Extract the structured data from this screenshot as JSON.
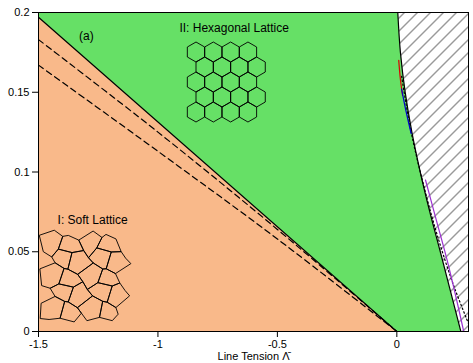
{
  "chart_data": {
    "type": "line",
    "x_label": "Line Tension Λ̄",
    "xlim": [
      -1.5,
      0.3
    ],
    "ylim": [
      0,
      0.2
    ],
    "xticks": [
      -1.5,
      -1,
      -0.5,
      0
    ],
    "yticks": [
      0,
      0.05,
      0.1,
      0.15,
      0.2
    ],
    "annotations": [
      {
        "text": "(a)",
        "x": -1.33,
        "y": 0.185
      },
      {
        "text": "II: Hexagonal Lattice",
        "x": -0.91,
        "y": 0.19
      },
      {
        "text": "I: Soft Lattice",
        "x": -1.42,
        "y": 0.07
      }
    ],
    "series": [
      {
        "type": "area",
        "color": "#f9b98a",
        "x": [
          -1.5,
          0,
          -1.5
        ],
        "y": [
          0.197,
          0,
          0
        ]
      },
      {
        "type": "area",
        "color": "#66e066",
        "x": [
          -1.5,
          -1.5,
          0.004,
          0.015,
          0.035,
          0.063,
          0.098,
          0.138,
          0.182,
          0.225,
          0.268,
          0
        ],
        "y": [
          0.197,
          0.2,
          0.2,
          0.175,
          0.15,
          0.125,
          0.1,
          0.075,
          0.05,
          0.025,
          0,
          0
        ]
      },
      {
        "type": "hatched",
        "color": "#ffffff",
        "x": [
          0.004,
          0.3,
          0.3,
          0.268,
          0.225,
          0.182,
          0.138,
          0.098,
          0.063,
          0.035,
          0.015
        ],
        "y": [
          0.2,
          0.2,
          0,
          0,
          0.025,
          0.05,
          0.075,
          0.1,
          0.125,
          0.15,
          0.175
        ]
      },
      {
        "type": "line",
        "color": "#000000",
        "line_style": "solid",
        "x": [
          -1.5,
          0
        ],
        "y": [
          0.197,
          0
        ]
      },
      {
        "type": "line",
        "color": "#000000",
        "line_style": "dashed",
        "x": [
          -1.5,
          -1,
          -0.5,
          0
        ],
        "y": [
          0.183,
          0.125,
          0.064,
          0
        ]
      },
      {
        "type": "line",
        "color": "#000000",
        "line_style": "dashed",
        "x": [
          -1.5,
          -1,
          -0.5,
          0
        ],
        "y": [
          0.167,
          0.113,
          0.058,
          0
        ]
      },
      {
        "type": "line",
        "color": "#000000",
        "line_style": "solid",
        "x": [
          0.004,
          0.015,
          0.035,
          0.063,
          0.098,
          0.138,
          0.182,
          0.225,
          0.268
        ],
        "y": [
          0.2,
          0.175,
          0.15,
          0.125,
          0.1,
          0.075,
          0.05,
          0.025,
          0
        ]
      },
      {
        "type": "line",
        "color": "#000000",
        "line_style": "dotted",
        "x": [
          0.02,
          0.06,
          0.115,
          0.17,
          0.235,
          0.3
        ],
        "y": [
          0.16,
          0.125,
          0.09,
          0.06,
          0.03,
          0.005
        ]
      },
      {
        "type": "line",
        "color": "#9b30d0",
        "line_style": "solid",
        "x": [
          0.12,
          0.165,
          0.21,
          0.25,
          0.28
        ],
        "y": [
          0.095,
          0.07,
          0.045,
          0.02,
          0
        ]
      },
      {
        "type": "line",
        "color": "#dd0000",
        "line_style": "solid",
        "x": [
          0.008,
          0.015,
          0.024
        ],
        "y": [
          0.17,
          0.158,
          0.148
        ]
      },
      {
        "type": "line",
        "color": "#0000cc",
        "line_style": "solid",
        "x": [
          0.02,
          0.04,
          0.06
        ],
        "y": [
          0.152,
          0.137,
          0.124
        ]
      }
    ]
  }
}
